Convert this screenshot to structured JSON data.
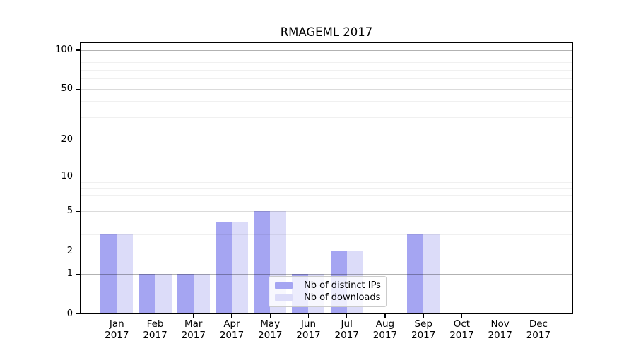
{
  "chart_data": {
    "type": "bar",
    "title": "RMAGEML 2017",
    "categories": [
      "Jan",
      "Feb",
      "Mar",
      "Apr",
      "May",
      "Jun",
      "Jul",
      "Aug",
      "Sep",
      "Oct",
      "Nov",
      "Dec"
    ],
    "category_year": "2017",
    "series": [
      {
        "name": "Nb of distinct IPs",
        "color": "#a5a5f2",
        "values": [
          3,
          1,
          1,
          4,
          5,
          1,
          2,
          0,
          3,
          0,
          0,
          0
        ]
      },
      {
        "name": "Nb of downloads",
        "color": "#dcdcf9",
        "values": [
          3,
          1,
          1,
          4,
          5,
          1,
          2,
          0,
          3,
          0,
          0,
          0
        ]
      }
    ],
    "xlabel": "",
    "ylabel": "",
    "y_axis": {
      "scale": "log10(1+x)",
      "tick_values": [
        0,
        1,
        2,
        5,
        10,
        20,
        50,
        100
      ],
      "tick_labels": [
        "0",
        "1",
        "2",
        "5",
        "10",
        "20",
        "50",
        "100"
      ],
      "strong_grid_values": [
        1,
        100
      ],
      "minor_tick_values": [
        3,
        4,
        6,
        7,
        8,
        9,
        30,
        40,
        60,
        70,
        80,
        90
      ],
      "ylim": [
        0,
        115
      ]
    },
    "grid": true,
    "legend": {
      "position": "bottom-center",
      "entries": [
        "Nb of distinct IPs",
        "Nb of downloads"
      ]
    }
  }
}
